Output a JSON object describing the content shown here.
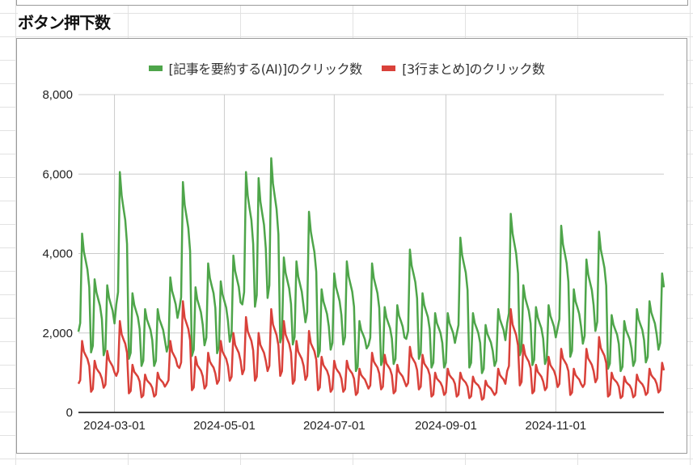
{
  "title": "ボタン押下数",
  "chart_data": {
    "type": "line",
    "title": "",
    "xlabel": "",
    "ylabel": "",
    "x_range": [
      "2024-02-10",
      "2024-12-31"
    ],
    "x_frequency": "daily",
    "x_ticks": [
      "2024-03-01",
      "2024-05-01",
      "2024-07-01",
      "2024-09-01",
      "2024-11-01"
    ],
    "ylim": [
      0,
      8000
    ],
    "y_ticks": [
      "0",
      "2,000",
      "4,000",
      "6,000",
      "8,000"
    ],
    "grid": true,
    "legend_position": "top",
    "series": [
      {
        "name": "[記事を要約する(AI)]のクリック数",
        "color": "#4ea54a",
        "values": [
          2030,
          2250,
          4500,
          4050,
          3830,
          3600,
          3150,
          1510,
          1680,
          3350,
          3020,
          2850,
          2680,
          2350,
          1440,
          1600,
          3200,
          2880,
          2720,
          2560,
          2240,
          2720,
          3030,
          6050,
          5450,
          5140,
          4840,
          4240,
          1350,
          1500,
          3000,
          2700,
          2550,
          2400,
          2100,
          1170,
          1300,
          2600,
          2340,
          2210,
          2080,
          1820,
          1170,
          1300,
          2600,
          2340,
          2210,
          2080,
          1820,
          1530,
          1700,
          3400,
          3060,
          2890,
          2720,
          2380,
          2610,
          2900,
          5800,
          5220,
          4930,
          4640,
          4060,
          1420,
          1580,
          3150,
          2840,
          2680,
          2520,
          2210,
          1690,
          1880,
          3750,
          3380,
          3190,
          3000,
          2630,
          1490,
          1650,
          3300,
          2970,
          2810,
          2640,
          2310,
          1780,
          1980,
          3950,
          3560,
          3360,
          3160,
          2770,
          2720,
          3030,
          6050,
          5450,
          5140,
          4840,
          4240,
          2660,
          2950,
          5900,
          5310,
          5020,
          4720,
          4130,
          2880,
          3200,
          6400,
          5760,
          5440,
          5120,
          4480,
          1760,
          1950,
          3900,
          3510,
          3320,
          3120,
          2730,
          1710,
          1900,
          3800,
          3420,
          3230,
          3040,
          2660,
          2270,
          2530,
          5050,
          4550,
          4290,
          4040,
          3540,
          1400,
          1550,
          3100,
          2790,
          2640,
          2480,
          2170,
          1580,
          1750,
          3500,
          3150,
          2980,
          2800,
          2450,
          1710,
          1900,
          3800,
          3420,
          3230,
          3040,
          2660,
          1040,
          1150,
          2300,
          2070,
          1960,
          1840,
          1610,
          1690,
          1880,
          3750,
          3380,
          3190,
          3000,
          2630,
          1190,
          1330,
          2650,
          2390,
          2250,
          2120,
          1860,
          1220,
          1350,
          2700,
          2430,
          2300,
          2160,
          1890,
          1850,
          2050,
          4100,
          3690,
          3490,
          3280,
          2870,
          1350,
          1500,
          3000,
          2700,
          2550,
          2400,
          2100,
          1130,
          1250,
          2500,
          2250,
          2130,
          2000,
          1750,
          1130,
          1250,
          2500,
          2250,
          2130,
          2000,
          1750,
          1980,
          2200,
          4400,
          3960,
          3740,
          3520,
          3080,
          1130,
          1250,
          2500,
          2250,
          2130,
          2000,
          1750,
          990,
          1100,
          2200,
          1980,
          1870,
          1760,
          1540,
          1170,
          1300,
          2600,
          2340,
          2210,
          2080,
          1820,
          2250,
          2500,
          5000,
          4500,
          4250,
          4000,
          3500,
          1440,
          1600,
          3200,
          2880,
          2720,
          2560,
          2240,
          1190,
          1330,
          2650,
          2390,
          2250,
          2120,
          1860,
          1220,
          1350,
          2700,
          2430,
          2300,
          2160,
          1890,
          2120,
          2350,
          4700,
          4230,
          4000,
          3760,
          3290,
          1400,
          1550,
          3100,
          2790,
          2640,
          2480,
          2170,
          1730,
          1930,
          3850,
          3470,
          3270,
          3080,
          2700,
          2050,
          2280,
          4550,
          4100,
          3870,
          3640,
          3190,
          1100,
          1230,
          2450,
          2210,
          2080,
          1960,
          1720,
          1040,
          1150,
          2300,
          2070,
          1960,
          1840,
          1610,
          1170,
          1300,
          2600,
          2340,
          2210,
          2080,
          1820,
          1260,
          1400,
          2800,
          2520,
          2380,
          2240,
          1960,
          1580,
          1750,
          3500,
          3150
        ]
      },
      {
        "name": "[3行まとめ]のクリック数",
        "color": "#d9413a",
        "values": [
          720,
          810,
          1800,
          1530,
          1440,
          1350,
          1170,
          520,
          590,
          1300,
          1110,
          1040,
          980,
          850,
          620,
          700,
          1550,
          1320,
          1240,
          1160,
          1010,
          920,
          1040,
          2300,
          1960,
          1840,
          1730,
          1500,
          480,
          540,
          1200,
          1020,
          960,
          900,
          780,
          380,
          430,
          950,
          810,
          760,
          710,
          620,
          400,
          450,
          1000,
          850,
          800,
          750,
          650,
          720,
          810,
          1800,
          1530,
          1440,
          1350,
          1170,
          1120,
          1260,
          2800,
          2380,
          2240,
          2100,
          1820,
          560,
          630,
          1400,
          1190,
          1120,
          1050,
          910,
          600,
          680,
          1500,
          1280,
          1200,
          1130,
          980,
          720,
          810,
          1800,
          1530,
          1440,
          1350,
          1170,
          800,
          900,
          2000,
          1700,
          1600,
          1500,
          1300,
          960,
          1080,
          2400,
          2040,
          1920,
          1800,
          1560,
          800,
          900,
          2000,
          1700,
          1600,
          1500,
          1300,
          1040,
          1170,
          2600,
          2210,
          2080,
          1950,
          1690,
          920,
          1040,
          2300,
          1960,
          1840,
          1730,
          1500,
          720,
          810,
          1800,
          1530,
          1440,
          1350,
          1170,
          820,
          920,
          2050,
          1740,
          1640,
          1540,
          1330,
          560,
          630,
          1400,
          1190,
          1120,
          1050,
          910,
          520,
          590,
          1300,
          1110,
          1040,
          980,
          850,
          520,
          590,
          1300,
          1110,
          1040,
          980,
          850,
          440,
          500,
          1100,
          940,
          880,
          830,
          720,
          600,
          680,
          1500,
          1280,
          1200,
          1130,
          980,
          580,
          650,
          1450,
          1230,
          1160,
          1090,
          940,
          480,
          540,
          1200,
          1020,
          960,
          900,
          780,
          660,
          740,
          1650,
          1400,
          1320,
          1240,
          1070,
          580,
          650,
          1450,
          1230,
          1160,
          1090,
          940,
          400,
          450,
          1000,
          850,
          800,
          750,
          650,
          440,
          500,
          1100,
          940,
          880,
          830,
          720,
          400,
          450,
          1000,
          850,
          800,
          750,
          650,
          360,
          410,
          900,
          770,
          720,
          680,
          590,
          320,
          360,
          800,
          680,
          640,
          600,
          520,
          440,
          500,
          1100,
          940,
          880,
          830,
          720,
          1040,
          1170,
          2600,
          2210,
          2080,
          1950,
          1690,
          680,
          770,
          1700,
          1450,
          1360,
          1280,
          1110,
          480,
          540,
          1200,
          1020,
          960,
          900,
          780,
          560,
          630,
          1400,
          1190,
          1120,
          1050,
          910,
          640,
          720,
          1600,
          1360,
          1280,
          1200,
          1040,
          440,
          500,
          1100,
          940,
          880,
          830,
          720,
          640,
          720,
          1600,
          1360,
          1280,
          1200,
          1040,
          760,
          860,
          1900,
          1620,
          1520,
          1430,
          1240,
          400,
          450,
          1000,
          850,
          800,
          750,
          650,
          360,
          410,
          900,
          770,
          720,
          680,
          590,
          380,
          430,
          950,
          810,
          760,
          710,
          620,
          440,
          500,
          1100,
          940,
          880,
          830,
          720,
          500,
          560,
          1250,
          1060
        ]
      }
    ]
  }
}
